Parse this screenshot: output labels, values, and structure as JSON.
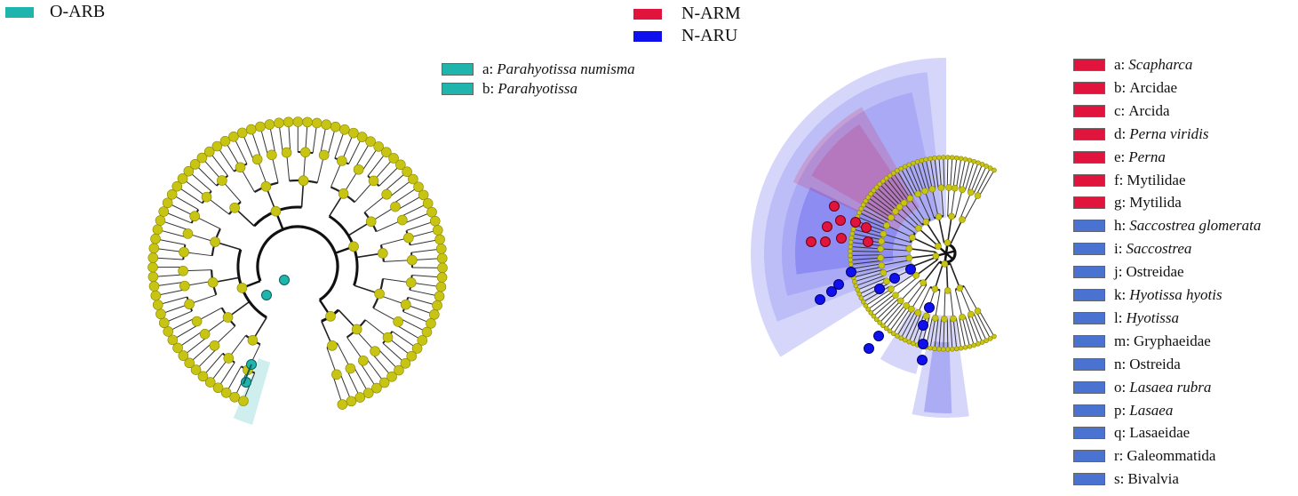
{
  "groups": {
    "left": [
      {
        "name": "O-ARB",
        "color": "#1fb5ad"
      }
    ],
    "right": [
      {
        "name": "N-ARM",
        "color": "#e0143c"
      },
      {
        "name": "N-ARU",
        "color": "#1010ee"
      }
    ]
  },
  "left_legend": [
    {
      "key": "a:",
      "taxon": "Parahyotissa numisma",
      "italic": true,
      "color": "#1fb5ad"
    },
    {
      "key": "b:",
      "taxon": "Parahyotissa",
      "italic": true,
      "color": "#1fb5ad"
    }
  ],
  "right_legend": [
    {
      "key": "a:",
      "taxon": "Scapharca",
      "italic": true,
      "color": "#e0143c"
    },
    {
      "key": "b:",
      "taxon": "Arcidae",
      "italic": false,
      "color": "#e0143c"
    },
    {
      "key": "c:",
      "taxon": "Arcida",
      "italic": false,
      "color": "#e0143c"
    },
    {
      "key": "d:",
      "taxon": "Perna viridis",
      "italic": true,
      "color": "#e0143c"
    },
    {
      "key": "e:",
      "taxon": "Perna",
      "italic": true,
      "color": "#e0143c"
    },
    {
      "key": "f:",
      "taxon": "Mytilidae",
      "italic": false,
      "color": "#e0143c"
    },
    {
      "key": "g:",
      "taxon": "Mytilida",
      "italic": false,
      "color": "#e0143c"
    },
    {
      "key": "h:",
      "taxon": "Saccostrea glomerata",
      "italic": true,
      "color": "#4a72d0"
    },
    {
      "key": "i:",
      "taxon": "Saccostrea",
      "italic": true,
      "color": "#4a72d0"
    },
    {
      "key": "j:",
      "taxon": "Ostreidae",
      "italic": false,
      "color": "#4a72d0"
    },
    {
      "key": "k:",
      "taxon": "Hyotissa hyotis",
      "italic": true,
      "color": "#4a72d0"
    },
    {
      "key": "l:",
      "taxon": "Hyotissa",
      "italic": true,
      "color": "#4a72d0"
    },
    {
      "key": "m:",
      "taxon": "Gryphaeidae",
      "italic": false,
      "color": "#4a72d0"
    },
    {
      "key": "n:",
      "taxon": "Ostreida",
      "italic": false,
      "color": "#4a72d0"
    },
    {
      "key": "o:",
      "taxon": "Lasaea rubra",
      "italic": true,
      "color": "#4a72d0"
    },
    {
      "key": "p:",
      "taxon": "Lasaea",
      "italic": true,
      "color": "#4a72d0"
    },
    {
      "key": "q:",
      "taxon": "Lasaeidae",
      "italic": false,
      "color": "#4a72d0"
    },
    {
      "key": "r:",
      "taxon": "Galeommatida",
      "italic": false,
      "color": "#4a72d0"
    },
    {
      "key": "s:",
      "taxon": "Bivalvia",
      "italic": false,
      "color": "#4a72d0"
    }
  ],
  "colors": {
    "node": "#c8c414",
    "node_stroke": "#8a8700",
    "teal": "#1fb5ad",
    "red": "#e0143c",
    "blue": "#1010ee"
  }
}
